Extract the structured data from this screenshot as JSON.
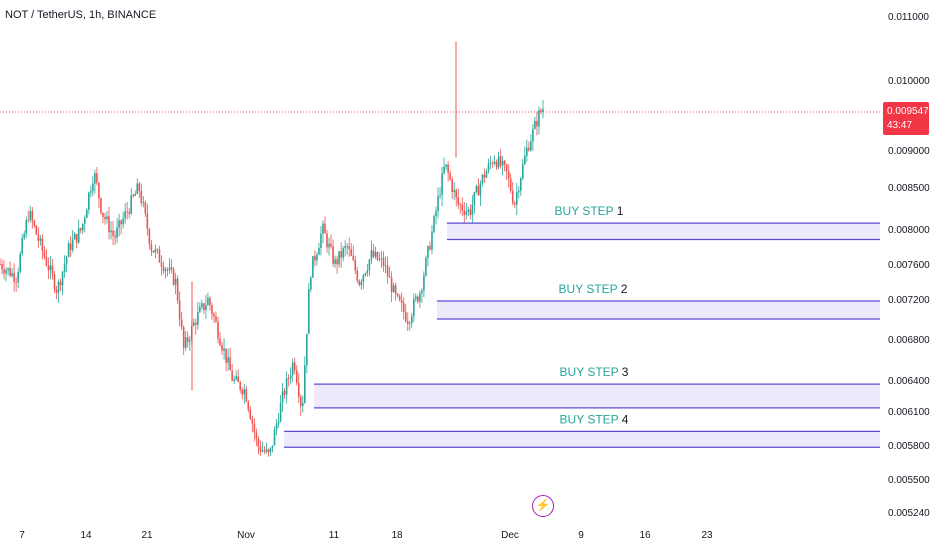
{
  "header": {
    "symbol": "NOT / TetherUS, 1h, BINANCE"
  },
  "price_marker": {
    "price": "0.009547",
    "countdown": "43:47",
    "color": "#f23645"
  },
  "colors": {
    "up": "#26a69a",
    "down": "#ef5350",
    "zone_border": "#5b4bd3",
    "zone_fill": "#e8e3fb",
    "zone_label": "#26a69a"
  },
  "icons": {
    "event": "lightning-icon"
  },
  "chart_data": {
    "type": "candlestick",
    "title": "NOT / TetherUS, 1h, BINANCE",
    "y_axis": {
      "position": "right",
      "ticks": [
        0.011,
        0.01,
        0.009547,
        0.009,
        0.0085,
        0.008,
        0.0076,
        0.0072,
        0.0068,
        0.0064,
        0.0061,
        0.0058,
        0.0055,
        0.00524
      ],
      "tick_labels": [
        "0.011000",
        "0.010000",
        "0.009000",
        "0.008500",
        "0.008000",
        "0.007600",
        "0.007200",
        "0.006800",
        "0.006400",
        "0.006100",
        "0.005800",
        "0.005500",
        "0.005240"
      ]
    },
    "x_axis": {
      "tick_labels": [
        "7",
        "14",
        "21",
        "Nov",
        "11",
        "18",
        "Dec",
        "9",
        "16",
        "23"
      ]
    },
    "series_path": [
      {
        "t": 0.0,
        "p": 0.0076
      },
      {
        "t": 0.02,
        "p": 0.00745
      },
      {
        "t": 0.035,
        "p": 0.0082
      },
      {
        "t": 0.05,
        "p": 0.0078
      },
      {
        "t": 0.07,
        "p": 0.0073
      },
      {
        "t": 0.085,
        "p": 0.0078
      },
      {
        "t": 0.1,
        "p": 0.008
      },
      {
        "t": 0.115,
        "p": 0.0087
      },
      {
        "t": 0.125,
        "p": 0.0082
      },
      {
        "t": 0.14,
        "p": 0.0079
      },
      {
        "t": 0.155,
        "p": 0.0082
      },
      {
        "t": 0.17,
        "p": 0.0085
      },
      {
        "t": 0.185,
        "p": 0.0078
      },
      {
        "t": 0.2,
        "p": 0.0076
      },
      {
        "t": 0.215,
        "p": 0.0074
      },
      {
        "t": 0.225,
        "p": 0.0067
      },
      {
        "t": 0.24,
        "p": 0.007
      },
      {
        "t": 0.255,
        "p": 0.0072
      },
      {
        "t": 0.27,
        "p": 0.0068
      },
      {
        "t": 0.285,
        "p": 0.0064
      },
      {
        "t": 0.3,
        "p": 0.0063
      },
      {
        "t": 0.315,
        "p": 0.0058
      },
      {
        "t": 0.33,
        "p": 0.0057
      },
      {
        "t": 0.345,
        "p": 0.0062
      },
      {
        "t": 0.36,
        "p": 0.0066
      },
      {
        "t": 0.37,
        "p": 0.0061
      },
      {
        "t": 0.38,
        "p": 0.0075
      },
      {
        "t": 0.395,
        "p": 0.008
      },
      {
        "t": 0.41,
        "p": 0.0076
      },
      {
        "t": 0.425,
        "p": 0.0078
      },
      {
        "t": 0.44,
        "p": 0.0074
      },
      {
        "t": 0.455,
        "p": 0.0077
      },
      {
        "t": 0.47,
        "p": 0.0076
      },
      {
        "t": 0.485,
        "p": 0.0072
      },
      {
        "t": 0.5,
        "p": 0.007
      },
      {
        "t": 0.515,
        "p": 0.0073
      },
      {
        "t": 0.53,
        "p": 0.008
      },
      {
        "t": 0.545,
        "p": 0.0088
      },
      {
        "t": 0.56,
        "p": 0.0083
      },
      {
        "t": 0.575,
        "p": 0.0082
      },
      {
        "t": 0.59,
        "p": 0.0086
      },
      {
        "t": 0.605,
        "p": 0.0089
      },
      {
        "t": 0.62,
        "p": 0.0087
      },
      {
        "t": 0.63,
        "p": 0.0083
      },
      {
        "t": 0.645,
        "p": 0.009
      },
      {
        "t": 0.66,
        "p": 0.0095
      },
      {
        "t": 0.665,
        "p": 0.0096
      }
    ],
    "zones": [
      {
        "label": "BUY STEP",
        "step": "1",
        "top": 0.00807,
        "bottom": 0.00788
      },
      {
        "label": "BUY STEP",
        "step": "2",
        "top": 0.00718,
        "bottom": 0.007
      },
      {
        "label": "BUY STEP",
        "step": "3",
        "top": 0.00636,
        "bottom": 0.00613
      },
      {
        "label": "BUY STEP",
        "step": "4",
        "top": 0.00592,
        "bottom": 0.00578
      }
    ],
    "current_price": 0.009547,
    "grid": false,
    "legend": "none"
  }
}
